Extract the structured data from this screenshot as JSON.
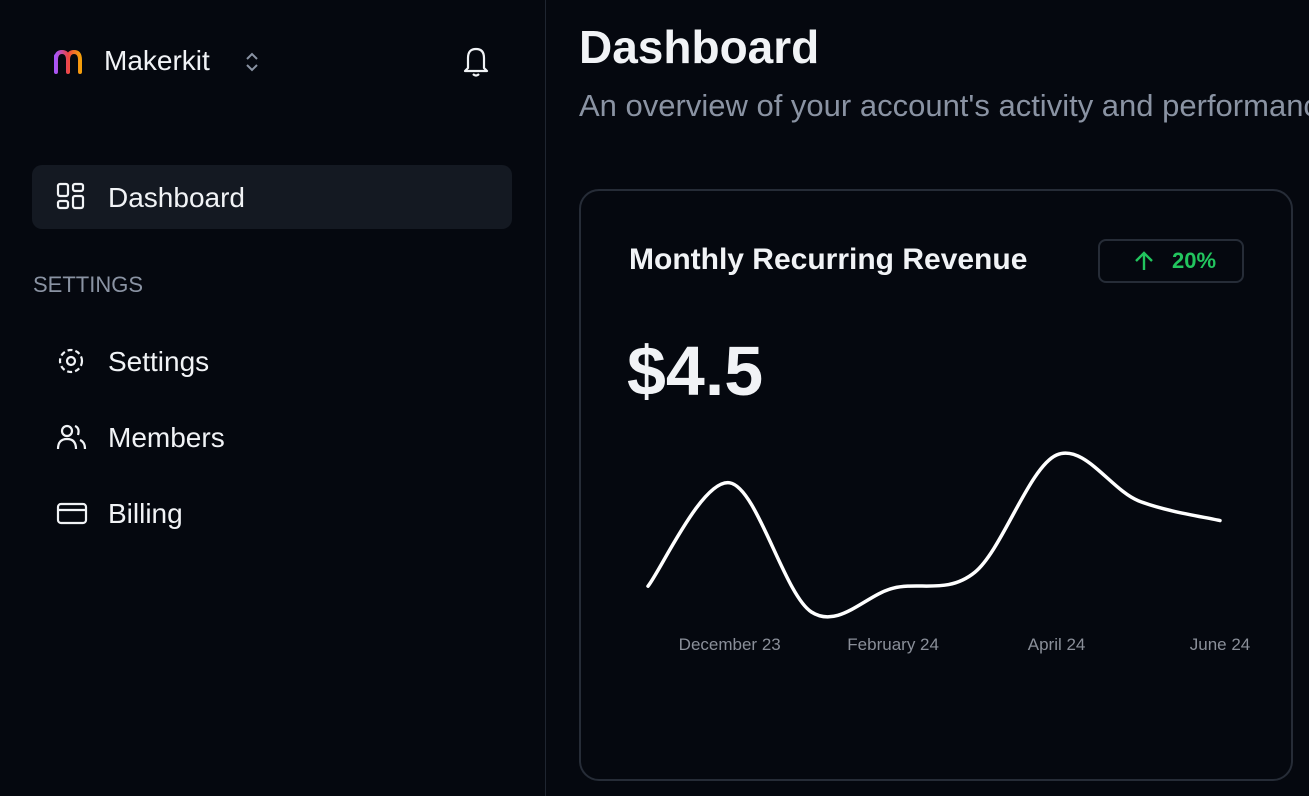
{
  "sidebar": {
    "brand": "Makerkit",
    "nav": [
      {
        "label": "Dashboard"
      }
    ],
    "section": "SETTINGS",
    "settings_nav": [
      {
        "label": "Settings"
      },
      {
        "label": "Members"
      },
      {
        "label": "Billing"
      }
    ]
  },
  "header": {
    "title": "Dashboard",
    "subtitle": "An overview of your account's activity and performance"
  },
  "card": {
    "title": "Monthly Recurring Revenue",
    "badge": "20%",
    "value": "$4.5",
    "chart_data": {
      "type": "line",
      "categories": [
        null,
        "December 23",
        null,
        "February 24",
        null,
        "April 24",
        null,
        "June 24"
      ],
      "values": [
        2.7,
        7.9,
        1.4,
        2.6,
        3.4,
        9.3,
        7.0,
        6.0
      ],
      "color": "#ffffff"
    }
  }
}
